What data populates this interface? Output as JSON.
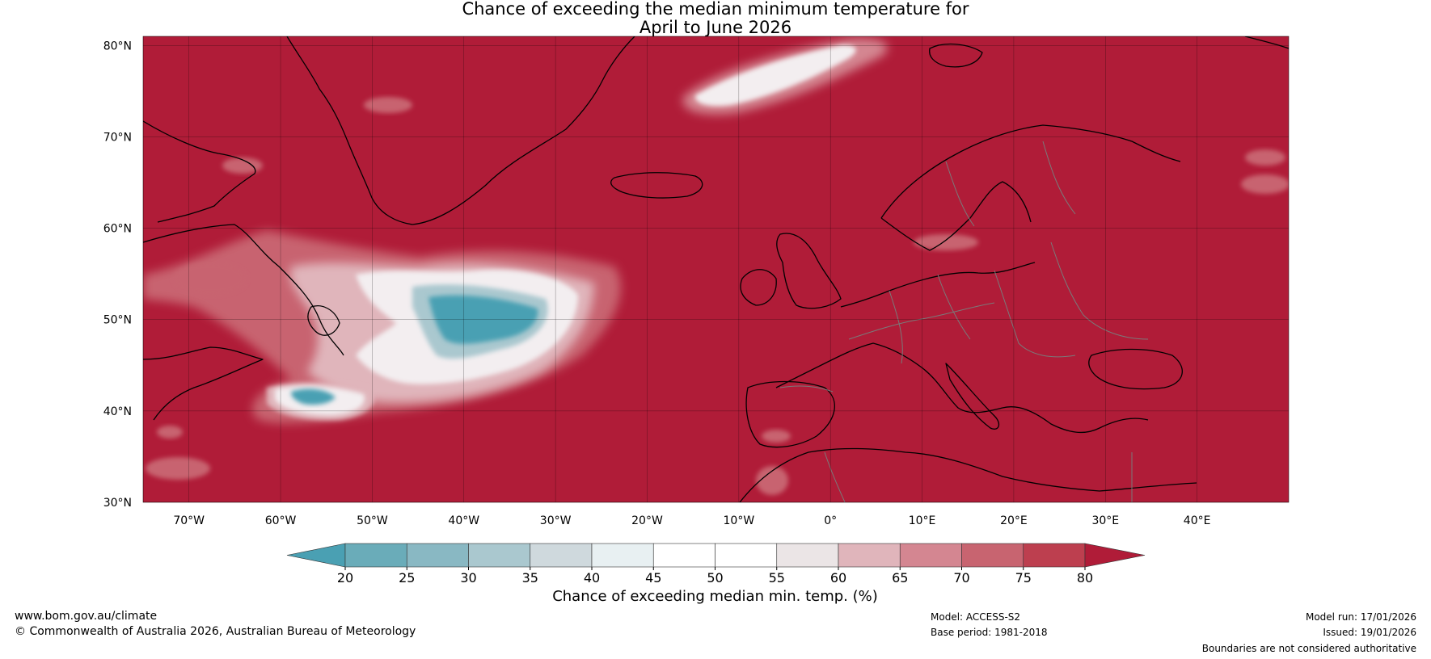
{
  "title": {
    "line1": "Chance of exceeding the median minimum temperature for",
    "line2": "April to June 2026"
  },
  "map": {
    "lat_labels": [
      "80°N",
      "70°N",
      "60°N",
      "50°N",
      "40°N",
      "30°N"
    ],
    "lon_labels": [
      "70°W",
      "60°W",
      "50°W",
      "40°W",
      "30°W",
      "20°W",
      "10°W",
      "0°",
      "10°E",
      "20°E",
      "30°E",
      "40°E"
    ],
    "lat_range": [
      30,
      81
    ],
    "lon_range": [
      -75,
      50
    ],
    "background_color": "#b01c38"
  },
  "colorbar": {
    "ticks": [
      "20",
      "25",
      "30",
      "35",
      "40",
      "45",
      "50",
      "55",
      "60",
      "65",
      "70",
      "75",
      "80"
    ],
    "colors": [
      "#4aa0b3",
      "#6aacb9",
      "#89b8c3",
      "#aac8cf",
      "#cfd9dd",
      "#e8f0f2",
      "#ffffff",
      "#ffffff",
      "#ebe5e6",
      "#e0b5bb",
      "#d48691",
      "#c86470",
      "#bd3f4f",
      "#b01c38"
    ],
    "label": "Chance of exceeding median min. temp. (%)"
  },
  "footer": {
    "website": "www.bom.gov.au/climate",
    "copyright": "© Commonwealth of Australia 2026, Australian Bureau of Meteorology",
    "model": "Model: ACCESS-S2",
    "base_period": "Base period: 1981-2018",
    "model_run": "Model run: 17/01/2026",
    "issued": "Issued: 19/01/2026",
    "disclaimer": "Boundaries are not considered authoritative"
  }
}
